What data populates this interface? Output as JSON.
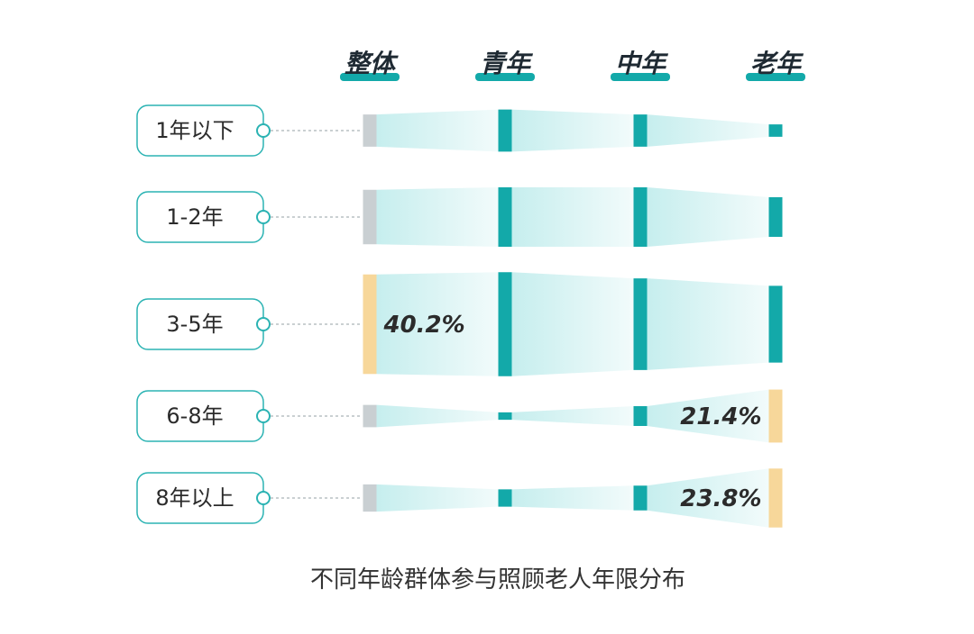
{
  "chart_data": {
    "type": "flow",
    "title": "不同年龄群体参与照顾老人年限分布",
    "columns": [
      "整体",
      "青年",
      "中年",
      "老年"
    ],
    "rows": [
      "1年以下",
      "1-2年",
      "3-5年",
      "6-8年",
      "8年以上"
    ],
    "values": {
      "整体": [
        13,
        22,
        40.2,
        9,
        11
      ],
      "青年": [
        17,
        24,
        42,
        3,
        7
      ],
      "中年": [
        13,
        24,
        37,
        8,
        10
      ],
      "老年": [
        5,
        16,
        31,
        21.4,
        23.8
      ]
    },
    "highlights": [
      {
        "row": "3-5年",
        "column": "整体",
        "label": "40.2%"
      },
      {
        "row": "6-8年",
        "column": "老年",
        "label": "21.4%"
      },
      {
        "row": "8年以上",
        "column": "老年",
        "label": "23.8%"
      }
    ]
  },
  "colors": {
    "accent": "#13a9a9",
    "band_start": "#c6eeee",
    "band_end": "#f2fbfb",
    "overall_gray": "#c9cfd2",
    "highlight": "#f7d79a",
    "label_border": "#2bb3b3",
    "dashed_line": "#aab3b8"
  }
}
